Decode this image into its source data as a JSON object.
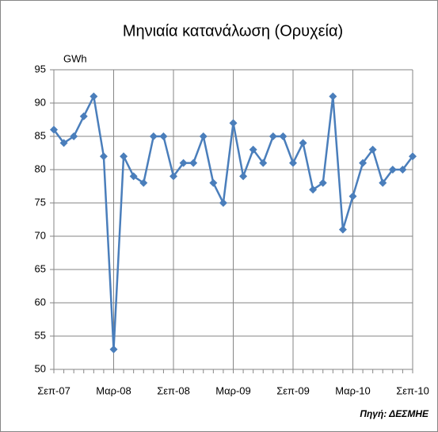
{
  "chart_data": {
    "type": "line",
    "title": "Μηνιαία κατανάλωση (Ορυχεία)",
    "y_label": "GWh",
    "source": "Πηγή: ΔΕΣΜΗΕ",
    "categories": [
      "Σεπ-07",
      null,
      null,
      null,
      null,
      null,
      "Μαρ-08",
      null,
      null,
      null,
      null,
      null,
      "Σεπ-08",
      null,
      null,
      null,
      null,
      null,
      "Μαρ-09",
      null,
      null,
      null,
      null,
      null,
      "Σεπ-09",
      null,
      null,
      null,
      null,
      null,
      "Μαρ-10",
      null,
      null,
      null,
      null,
      null,
      "Σεπ-10"
    ],
    "series": [
      {
        "name": "Κατανάλωση",
        "color": "#4a7ebb",
        "values": [
          86,
          84,
          85,
          88,
          91,
          82,
          53,
          82,
          79,
          78,
          85,
          85,
          79,
          81,
          81,
          85,
          78,
          75,
          87,
          79,
          83,
          81,
          85,
          85,
          81,
          84,
          77,
          78,
          91,
          71,
          76,
          81,
          83,
          78,
          80,
          80,
          82
        ]
      }
    ],
    "ylim": [
      50,
      95
    ],
    "yticks": [
      50,
      55,
      60,
      65,
      70,
      75,
      80,
      85,
      90,
      95
    ],
    "grid": true
  }
}
